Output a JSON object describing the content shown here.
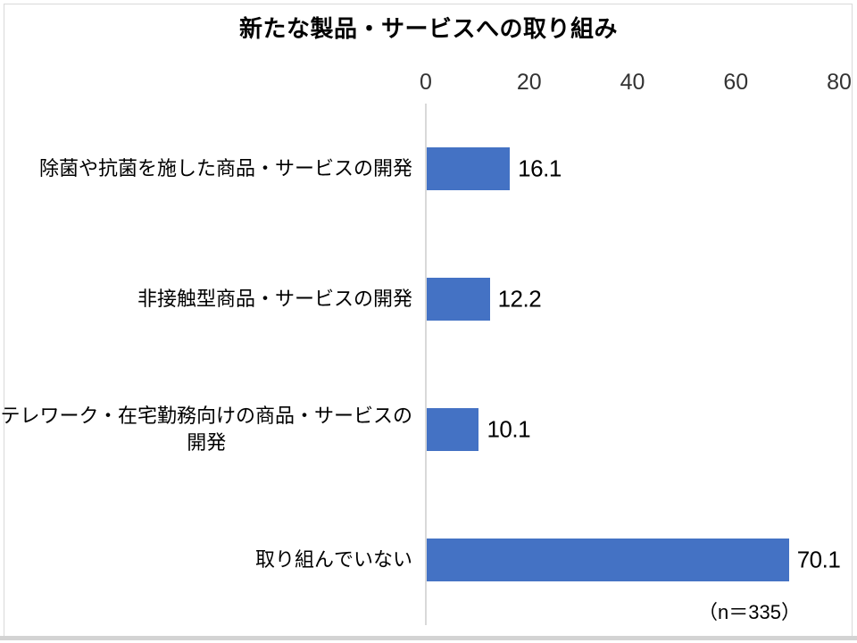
{
  "chart_data": {
    "type": "bar",
    "orientation": "horizontal",
    "title": "新たな製品・サービスへの取り組み",
    "categories": [
      "除菌や抗菌を施した商品・サービスの開発",
      "非接触型商品・サービスの開発",
      "テレワーク・在宅勤務向けの商品・サービスの\n開発",
      "取り組んでいない"
    ],
    "values": [
      16.1,
      12.2,
      10.1,
      70.1
    ],
    "data_labels": [
      "16.1",
      "12.2",
      "10.1",
      "70.1"
    ],
    "xlabel": "",
    "ylabel": "",
    "xlim": [
      0,
      80
    ],
    "xticks": [
      "0",
      "20",
      "40",
      "60",
      "80"
    ],
    "xtick_values": [
      0,
      20,
      40,
      60,
      80
    ],
    "grid": false,
    "legend": null,
    "note": "（n＝335）",
    "bar_color": "#4472c4",
    "axis_line_color": "#d9d9d9",
    "tick_text_color": "#333333",
    "label_text_color": "#000000"
  }
}
